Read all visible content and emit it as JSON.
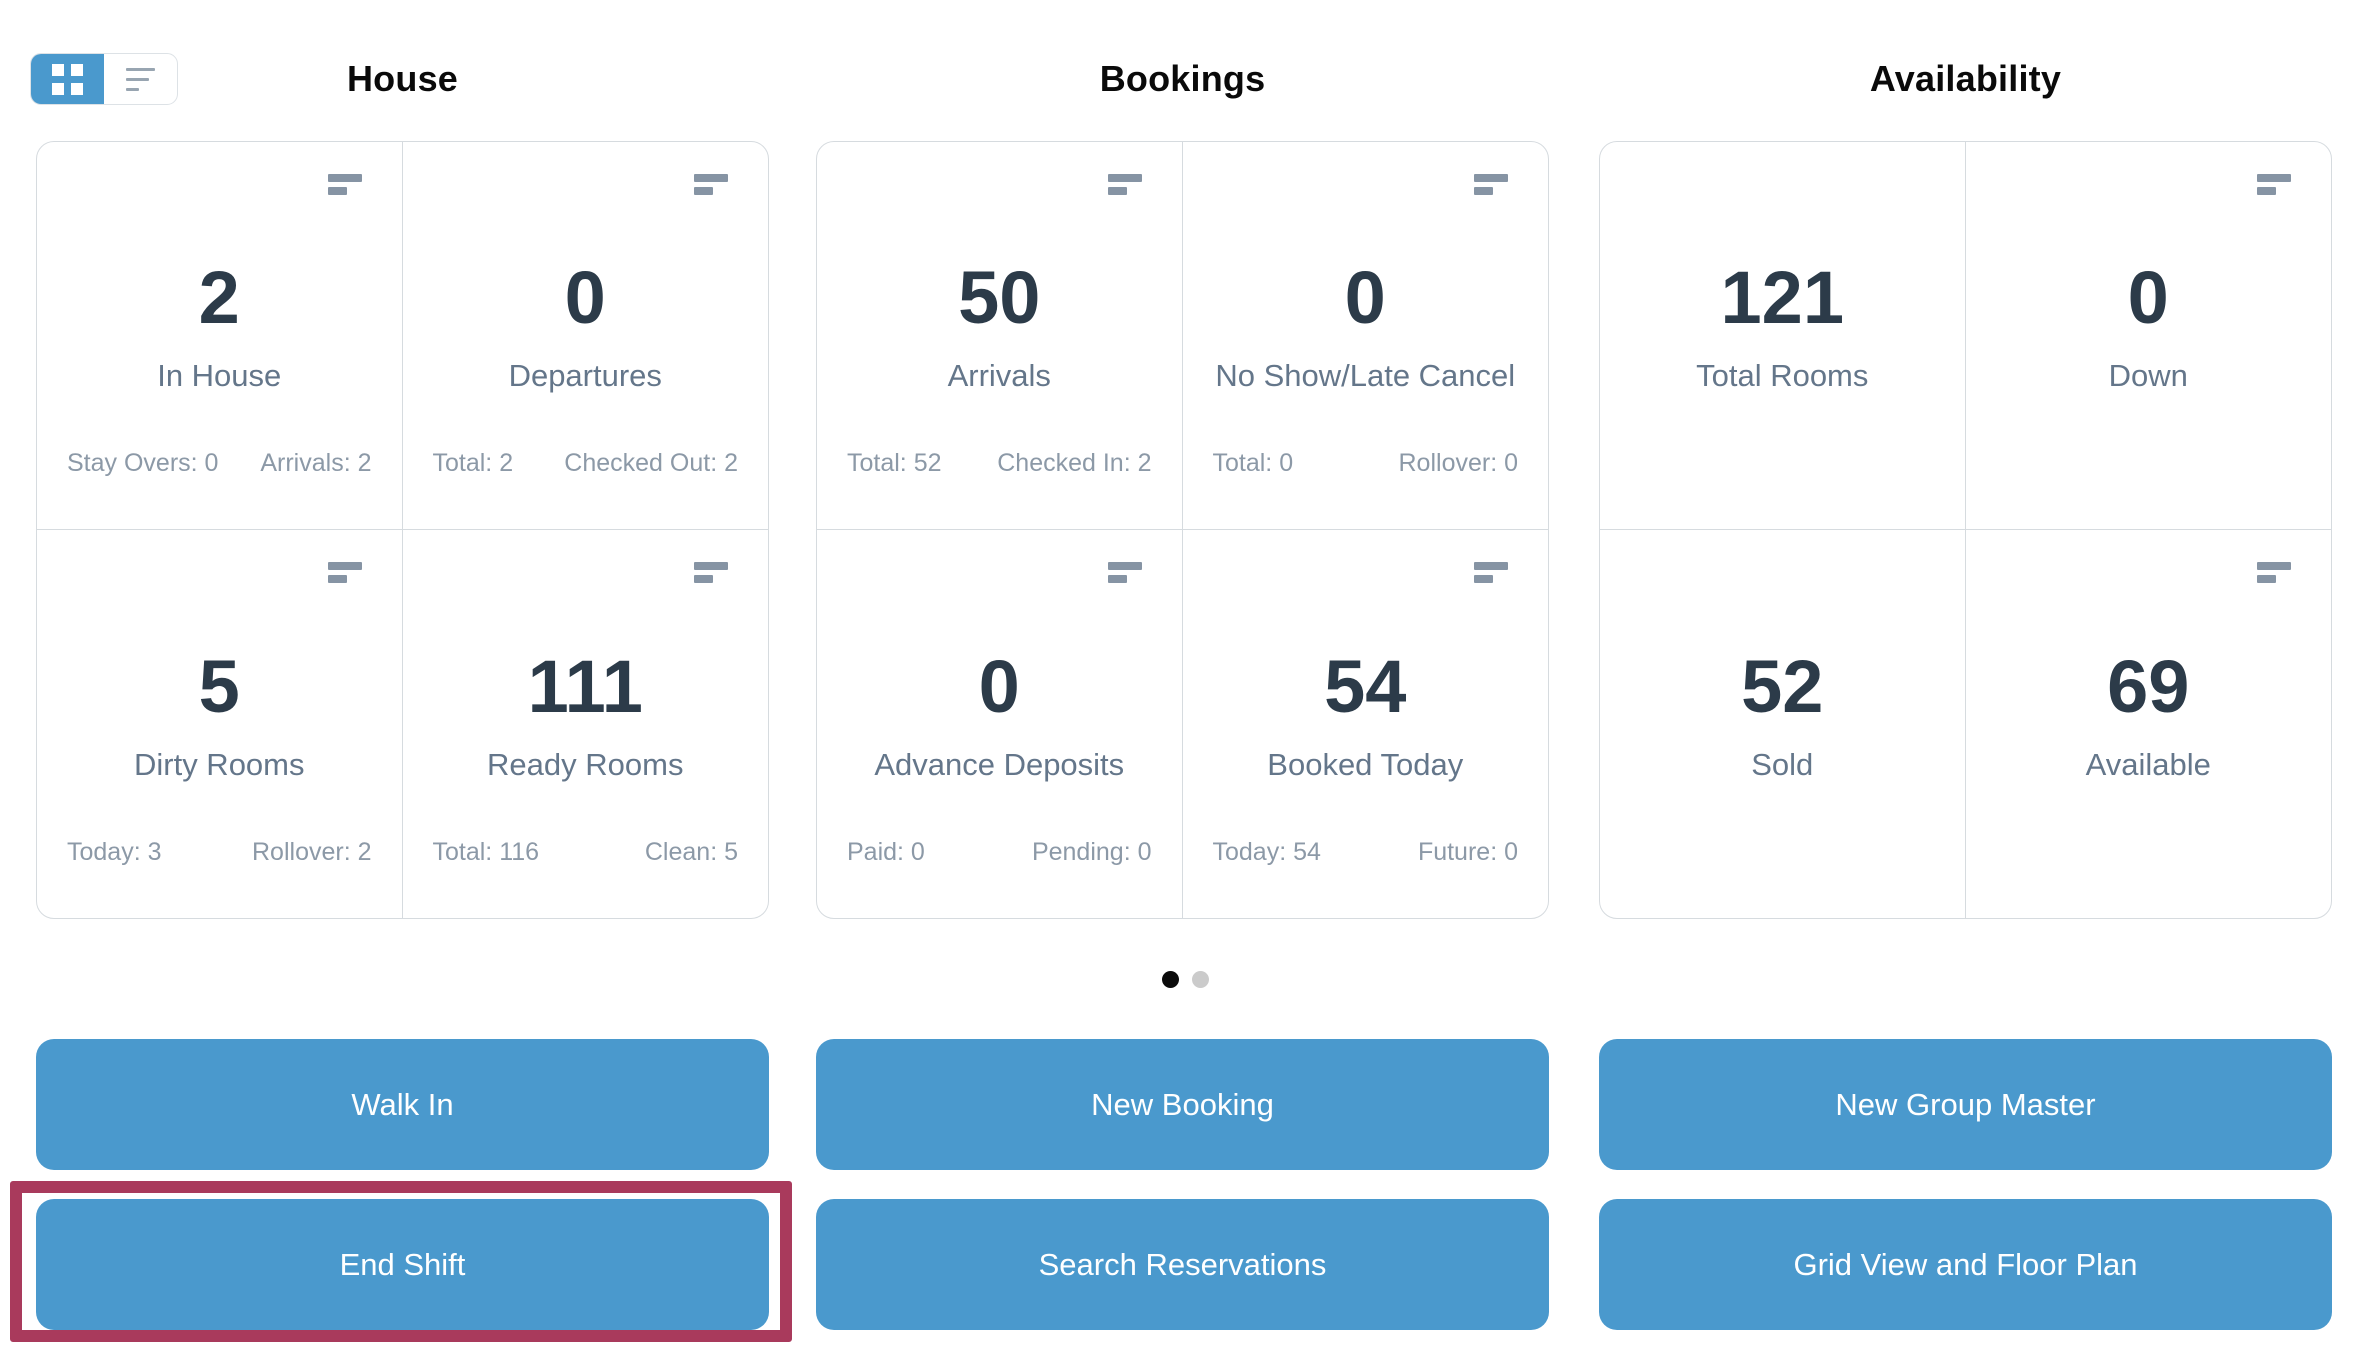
{
  "colors": {
    "accent_blue": "#4a99cd",
    "highlight_maroon": "#a93a5c",
    "stat_value": "#2c3b49",
    "stat_label": "#64768a",
    "stat_footer": "#8c99a7",
    "card_border": "#d6dbdf",
    "menu_icon": "#8694a4",
    "dot_active": "#0b0b0b",
    "dot_inactive": "#cbcbcb"
  },
  "view_toggle": {
    "active_view": "grid"
  },
  "sections": [
    {
      "title": "House",
      "cards": [
        {
          "value": "2",
          "label": "In House",
          "footer_left": "Stay Overs: 0",
          "footer_right": "Arrivals: 2",
          "menu_icon": true
        },
        {
          "value": "0",
          "label": "Departures",
          "footer_left": "Total: 2",
          "footer_right": "Checked Out: 2",
          "menu_icon": true
        },
        {
          "value": "5",
          "label": "Dirty Rooms",
          "footer_left": "Today: 3",
          "footer_right": "Rollover: 2",
          "menu_icon": true
        },
        {
          "value": "111",
          "label": "Ready Rooms",
          "footer_left": "Total: 116",
          "footer_right": "Clean: 5",
          "menu_icon": true
        }
      ]
    },
    {
      "title": "Bookings",
      "cards": [
        {
          "value": "50",
          "label": "Arrivals",
          "footer_left": "Total: 52",
          "footer_right": "Checked In: 2",
          "menu_icon": true
        },
        {
          "value": "0",
          "label": "No Show/Late Cancel",
          "footer_left": "Total: 0",
          "footer_right": "Rollover: 0",
          "menu_icon": true
        },
        {
          "value": "0",
          "label": "Advance Deposits",
          "footer_left": "Paid: 0",
          "footer_right": "Pending: 0",
          "menu_icon": true
        },
        {
          "value": "54",
          "label": "Booked Today",
          "footer_left": "Today: 54",
          "footer_right": "Future: 0",
          "menu_icon": true
        }
      ]
    },
    {
      "title": "Availability",
      "cards": [
        {
          "value": "121",
          "label": "Total Rooms",
          "footer_left": "",
          "footer_right": "",
          "menu_icon": false
        },
        {
          "value": "0",
          "label": "Down",
          "footer_left": "",
          "footer_right": "",
          "menu_icon": true
        },
        {
          "value": "52",
          "label": "Sold",
          "footer_left": "",
          "footer_right": "",
          "menu_icon": false
        },
        {
          "value": "69",
          "label": "Available",
          "footer_left": "",
          "footer_right": "",
          "menu_icon": true
        }
      ]
    }
  ],
  "carousel": {
    "dot_count": 2,
    "active_index": 0
  },
  "actions": {
    "walk_in": "Walk In",
    "end_shift": "End Shift",
    "new_booking": "New Booking",
    "search_reservations": "Search Reservations",
    "new_group_master": "New Group Master",
    "grid_view_floor_plan": "Grid View and Floor Plan"
  },
  "annotation": {
    "highlighted_button": "End Shift"
  }
}
